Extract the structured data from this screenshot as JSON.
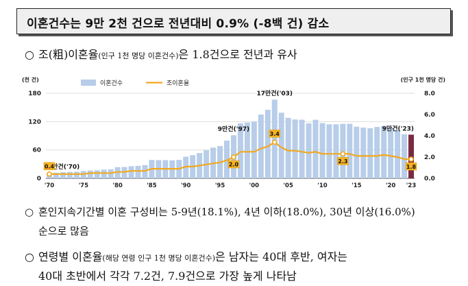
{
  "headline": "이혼건수는 9만 2천 건으로 전년대비 0.9% (-8백 건) 감소",
  "bullet1": {
    "marker": "○",
    "pre": "조(粗)이혼율",
    "paren": "(인구 1천 명당 이혼건수)",
    "post": "은 1.8건으로 전년과 유사"
  },
  "bullet2": {
    "marker": "○",
    "line1": "혼인지속기간별 이혼 구성비는 5-9년(18.1%), 4년 이하(18.0%), 30년 이상(16.0%)",
    "line2": "순으로 많음"
  },
  "bullet3": {
    "marker": "○",
    "pre": "연령별 이혼율",
    "paren": "(해당 연령 인구 1천 명당 이혼건수)",
    "post": "은 남자는 40대 후반, 여자는",
    "line2": "40대 초반에서 각각 7.2건, 7.9건으로 가장 높게 나타남"
  },
  "chart_data": {
    "type": "bar+line",
    "left_axis_unit": "(천 건)",
    "right_axis_unit": "(인구 1천 명당 건)",
    "left_ticks": [
      "0",
      "60",
      "120",
      "180"
    ],
    "right_ticks": [
      "0.0",
      "2.0",
      "4.0",
      "6.0",
      "8.0"
    ],
    "ylim_left": [
      0,
      180
    ],
    "ylim_right": [
      0,
      8
    ],
    "x_tick_labels": [
      "'70",
      "'75",
      "'80",
      "'85",
      "'90",
      "'95",
      "'00",
      "'05",
      "'10",
      "'15",
      "'20",
      "'23"
    ],
    "x_tick_years": [
      1970,
      1975,
      1980,
      1985,
      1990,
      1995,
      2000,
      2005,
      2010,
      2015,
      2020,
      2023
    ],
    "years": [
      1970,
      1971,
      1972,
      1973,
      1974,
      1975,
      1976,
      1977,
      1978,
      1979,
      1980,
      1981,
      1982,
      1983,
      1984,
      1985,
      1986,
      1987,
      1988,
      1989,
      1990,
      1991,
      1992,
      1993,
      1994,
      1995,
      1996,
      1997,
      1998,
      1999,
      2000,
      2001,
      2002,
      2003,
      2004,
      2005,
      2006,
      2007,
      2008,
      2009,
      2010,
      2011,
      2012,
      2013,
      2014,
      2015,
      2016,
      2017,
      2018,
      2019,
      2020,
      2021,
      2022,
      2023
    ],
    "series": [
      {
        "name": "이혼건수",
        "axis": "left",
        "color": "#b7cde9",
        "last_color": "#7a2a42",
        "values": [
          11.6,
          12,
          13,
          13.5,
          14,
          15.5,
          16.5,
          17,
          18.5,
          19,
          23.7,
          24,
          25.5,
          26.5,
          28,
          38.8,
          38.5,
          38.5,
          38,
          39,
          45.7,
          49,
          53.5,
          59.3,
          65,
          68.3,
          79.9,
          91.2,
          116.3,
          118,
          120,
          135,
          145,
          166.6,
          138.9,
          128,
          124.5,
          124.1,
          116.5,
          124,
          116.9,
          114.3,
          114.3,
          115.3,
          115.5,
          109.2,
          107.3,
          106,
          108.7,
          110.8,
          106.5,
          101.7,
          93.2,
          92.4
        ]
      },
      {
        "name": "조이혼율",
        "axis": "right",
        "color": "#f2a81d",
        "values": [
          0.4,
          0.4,
          0.4,
          0.4,
          0.4,
          0.4,
          0.5,
          0.5,
          0.5,
          0.5,
          0.6,
          0.6,
          0.7,
          0.7,
          0.7,
          0.9,
          0.9,
          0.9,
          0.9,
          0.9,
          1.1,
          1.1,
          1.2,
          1.3,
          1.4,
          1.5,
          1.7,
          2.0,
          2.5,
          2.5,
          2.5,
          2.8,
          3.0,
          3.4,
          2.9,
          2.6,
          2.6,
          2.5,
          2.4,
          2.5,
          2.3,
          2.3,
          2.3,
          2.3,
          2.3,
          2.1,
          2.1,
          2.1,
          2.1,
          2.2,
          2.1,
          2.0,
          1.8,
          1.8
        ]
      }
    ],
    "bar_annotations": [
      {
        "year": 1970,
        "text": "1만건('70)"
      },
      {
        "year": 1997,
        "text": "9만건('97)"
      },
      {
        "year": 2003,
        "text": "17만건('03)"
      },
      {
        "year": 2023,
        "text": "9만건('23)"
      }
    ],
    "line_annotations": [
      {
        "year": 1970,
        "value": 0.4,
        "text": "0.4"
      },
      {
        "year": 1997,
        "value": 2.0,
        "text": "2.0"
      },
      {
        "year": 2003,
        "value": 3.4,
        "text": "3.4"
      },
      {
        "year": 2013,
        "value": 2.3,
        "text": "2.3"
      },
      {
        "year": 2023,
        "value": 1.8,
        "text": "1.8"
      }
    ]
  }
}
